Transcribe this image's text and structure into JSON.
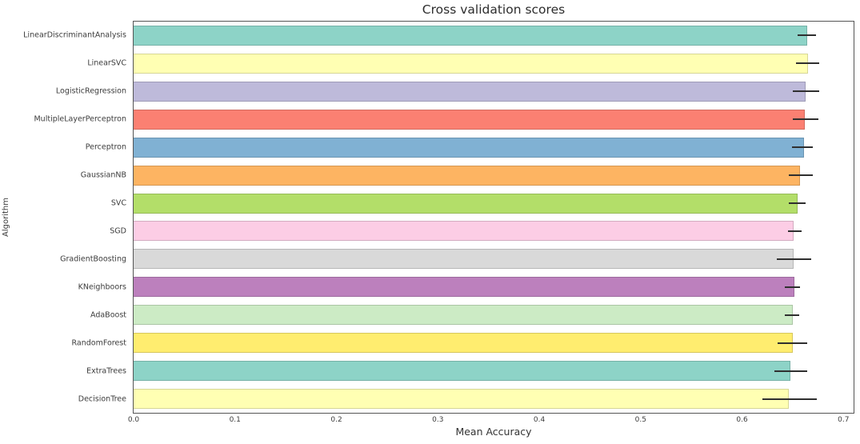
{
  "chart_data": {
    "type": "bar",
    "orientation": "horizontal",
    "title": "Cross validation scores",
    "xlabel": "Mean Accuracy",
    "ylabel": "Algorithm",
    "xlim": [
      0,
      0.71
    ],
    "xtick_labels": [
      "0.0",
      "0.1",
      "0.2",
      "0.3",
      "0.4",
      "0.5",
      "0.6",
      "0.7"
    ],
    "grid": false,
    "legend": "none",
    "categories": [
      "LinearDiscriminantAnalysis",
      "LinearSVC",
      "LogisticRegression",
      "MultipleLayerPerceptron",
      "Perceptron",
      "GaussianNB",
      "SVC",
      "SGD",
      "GradientBoosting",
      "KNeighboors",
      "AdaBoost",
      "RandomForest",
      "ExtraTrees",
      "DecisionTree"
    ],
    "values": [
      0.664,
      0.665,
      0.663,
      0.662,
      0.661,
      0.657,
      0.655,
      0.651,
      0.651,
      0.652,
      0.65,
      0.65,
      0.648,
      0.646
    ],
    "error_low": [
      0.655,
      0.653,
      0.65,
      0.65,
      0.649,
      0.646,
      0.646,
      0.645,
      0.634,
      0.642,
      0.642,
      0.635,
      0.632,
      0.62
    ],
    "error_high": [
      0.673,
      0.676,
      0.676,
      0.675,
      0.67,
      0.67,
      0.663,
      0.659,
      0.668,
      0.657,
      0.656,
      0.664,
      0.664,
      0.674
    ],
    "bar_colors": [
      "#8dd3c7",
      "#ffffb3",
      "#bebada",
      "#fb8072",
      "#80b1d3",
      "#fdb462",
      "#b3de69",
      "#fccde5",
      "#d9d9d9",
      "#bc80bd",
      "#ccebc5",
      "#ffed6f",
      "#8dd3c7",
      "#ffffb3"
    ],
    "error_color": "#2f2f2f",
    "spine_color": "#555555",
    "background": "#ffffff"
  }
}
